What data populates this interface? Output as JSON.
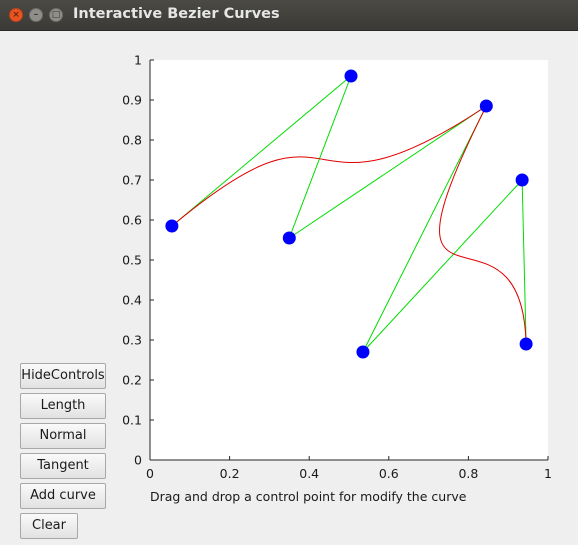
{
  "window": {
    "title": "Interactive Bezier Curves",
    "controls": {
      "close": "×",
      "minimize": "–",
      "maximize": "□"
    }
  },
  "buttons": {
    "hide_controls": "HideControls",
    "length": "Length",
    "normal": "Normal",
    "tangent": "Tangent",
    "add_curve": "Add curve",
    "clear": "Clear"
  },
  "hint": "Drag and drop a control point for modify the curve",
  "colors": {
    "curve": "#e00000",
    "control_polygon": "#00dd00",
    "control_point": "#0000ff",
    "plot_background": "#ffffff"
  },
  "chart_data": {
    "type": "scatter",
    "xlim": [
      0,
      1
    ],
    "ylim": [
      0,
      1
    ],
    "xticks": [
      "0",
      "0.2",
      "0.4",
      "0.6",
      "0.8",
      "1"
    ],
    "yticks": [
      "0",
      "0.1",
      "0.2",
      "0.3",
      "0.4",
      "0.5",
      "0.6",
      "0.7",
      "0.8",
      "0.9",
      "1"
    ],
    "grid": false,
    "curves": [
      {
        "control_points": [
          [
            0.055,
            0.585
          ],
          [
            0.505,
            0.96
          ],
          [
            0.35,
            0.555
          ],
          [
            0.845,
            0.885
          ]
        ]
      },
      {
        "control_points": [
          [
            0.845,
            0.885
          ],
          [
            0.535,
            0.27
          ],
          [
            0.935,
            0.7
          ],
          [
            0.945,
            0.29
          ]
        ]
      }
    ]
  }
}
